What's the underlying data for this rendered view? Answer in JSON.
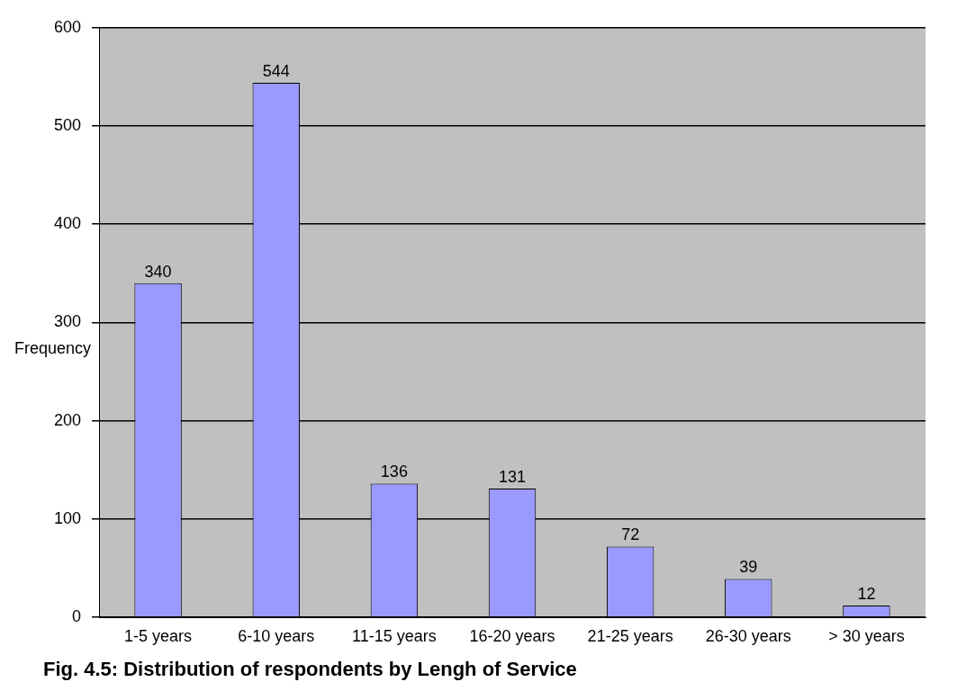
{
  "chart_data": {
    "type": "bar",
    "title": "Fig. 4.5: Distribution of respondents by Lengh of Service",
    "ylabel": "Frequency",
    "categories": [
      "1-5 years",
      "6-10 years",
      "11-15 years",
      "16-20 years",
      "21-25 years",
      "26-30 years",
      "> 30 years"
    ],
    "values": [
      340,
      544,
      136,
      131,
      72,
      39,
      12
    ],
    "color": "#9999ff",
    "ylim": [
      0,
      600
    ],
    "yticks": [
      0,
      100,
      200,
      300,
      400,
      500,
      600
    ],
    "grid": "y",
    "data_labels": true,
    "legend": false
  }
}
